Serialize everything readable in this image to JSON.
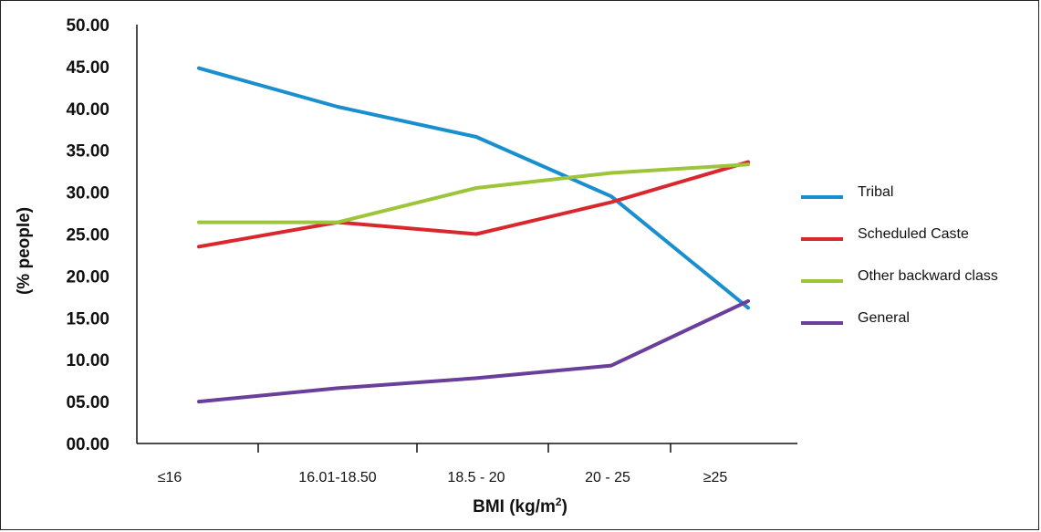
{
  "chart_data": {
    "type": "line",
    "categories": [
      "≤16",
      "16.01-18.50",
      "18.5 - 20",
      "20 - 25",
      "≥25"
    ],
    "series": [
      {
        "name": "Tribal",
        "color": "#1a8fcf",
        "values": [
          44.8,
          40.2,
          36.6,
          29.5,
          16.2
        ]
      },
      {
        "name": "Scheduled Caste",
        "color": "#d9272e",
        "values": [
          23.5,
          26.4,
          25.0,
          28.8,
          33.6
        ]
      },
      {
        "name": "Other backward class",
        "color": "#9cc53a",
        "values": [
          26.4,
          26.4,
          30.5,
          32.3,
          33.3
        ]
      },
      {
        "name": "General",
        "color": "#6a3f9a",
        "values": [
          5.0,
          6.6,
          7.8,
          9.3,
          17.0
        ]
      }
    ],
    "yticks": [
      "00.00",
      "05.00",
      "10.00",
      "15.00",
      "20.00",
      "25.00",
      "30.00",
      "35.00",
      "40.00",
      "45.00",
      "50.00"
    ],
    "ylim": [
      0,
      50
    ],
    "ylabel": "(% people)",
    "xlabel_main": "BMI (kg/m",
    "xlabel_sup": "2",
    "xlabel_end": ")",
    "legend_position": "right",
    "grid": false
  }
}
